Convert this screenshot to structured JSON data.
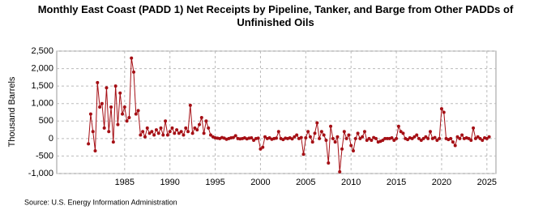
{
  "chart_data": {
    "type": "line",
    "title": "Monthly East Coast (PADD 1) Net Receipts by Pipeline, Tanker, and Barge from Other PADDs of Unfinished Oils",
    "y_label": "Thousand Barrels",
    "source": "Source: U.S. Energy Information Administration",
    "xlim": [
      1977.5,
      2026
    ],
    "xticks": [
      1985,
      1990,
      1995,
      2000,
      2005,
      2010,
      2015,
      2020,
      2025
    ],
    "ylim": [
      -1000,
      2500
    ],
    "yticks": [
      {
        "value": -1000,
        "label": "-1,000"
      },
      -500,
      0,
      500,
      {
        "value": 1000,
        "label": "1,000"
      },
      {
        "value": 1500,
        "label": "1,500"
      },
      {
        "value": 2000,
        "label": "2,000"
      },
      {
        "value": 2500,
        "label": "2,500"
      }
    ],
    "grid": true,
    "x": [
      1981,
      1981.25,
      1981.5,
      1981.75,
      1982,
      1982.25,
      1982.5,
      1982.75,
      1983,
      1983.25,
      1983.5,
      1983.75,
      1984,
      1984.25,
      1984.5,
      1984.75,
      1985,
      1985.25,
      1985.5,
      1985.75,
      1986,
      1986.25,
      1986.5,
      1986.75,
      1987,
      1987.25,
      1987.5,
      1987.75,
      1988,
      1988.25,
      1988.5,
      1988.75,
      1989,
      1989.25,
      1989.5,
      1989.75,
      1990,
      1990.25,
      1990.5,
      1990.75,
      1991,
      1991.25,
      1991.5,
      1991.75,
      1992,
      1992.25,
      1992.5,
      1992.75,
      1993,
      1993.25,
      1993.5,
      1993.75,
      1994,
      1994.25,
      1994.5,
      1994.75,
      1995,
      1995.25,
      1995.5,
      1995.75,
      1996,
      1996.25,
      1996.5,
      1996.75,
      1997,
      1997.25,
      1997.5,
      1997.75,
      1998,
      1998.25,
      1998.5,
      1998.75,
      1999,
      1999.25,
      1999.5,
      1999.75,
      2000,
      2000.25,
      2000.5,
      2000.75,
      2001,
      2001.25,
      2001.5,
      2001.75,
      2002,
      2002.25,
      2002.5,
      2002.75,
      2003,
      2003.25,
      2003.5,
      2003.75,
      2004,
      2004.25,
      2004.5,
      2004.75,
      2005,
      2005.25,
      2005.5,
      2005.75,
      2006,
      2006.25,
      2006.5,
      2006.75,
      2007,
      2007.25,
      2007.5,
      2007.75,
      2008,
      2008.25,
      2008.5,
      2008.75,
      2009,
      2009.25,
      2009.5,
      2009.75,
      2010,
      2010.25,
      2010.5,
      2010.75,
      2011,
      2011.25,
      2011.5,
      2011.75,
      2012,
      2012.25,
      2012.5,
      2012.75,
      2013,
      2013.25,
      2013.5,
      2013.75,
      2014,
      2014.25,
      2014.5,
      2014.75,
      2015,
      2015.25,
      2015.5,
      2015.75,
      2016,
      2016.25,
      2016.5,
      2016.75,
      2017,
      2017.25,
      2017.5,
      2017.75,
      2018,
      2018.25,
      2018.5,
      2018.75,
      2019,
      2019.25,
      2019.5,
      2019.75,
      2020,
      2020.25,
      2020.5,
      2020.75,
      2021,
      2021.25,
      2021.5,
      2021.75,
      2022,
      2022.25,
      2022.5,
      2022.75,
      2023,
      2023.25,
      2023.5,
      2023.75,
      2024,
      2024.25,
      2024.5,
      2024.75,
      2025,
      2025.25
    ],
    "series": [
      {
        "color": "#a50f15",
        "values": [
          -150,
          700,
          200,
          -350,
          1600,
          900,
          1000,
          300,
          1450,
          200,
          900,
          -100,
          1500,
          400,
          1300,
          700,
          900,
          500,
          600,
          2300,
          1900,
          700,
          800,
          100,
          200,
          50,
          300,
          150,
          200,
          100,
          250,
          150,
          300,
          100,
          500,
          100,
          200,
          300,
          150,
          250,
          150,
          200,
          100,
          300,
          200,
          950,
          150,
          300,
          250,
          400,
          600,
          150,
          500,
          300,
          100,
          50,
          20,
          10,
          0,
          30,
          10,
          -20,
          0,
          20,
          30,
          80,
          0,
          -10,
          0,
          20,
          -10,
          10,
          20,
          -50,
          0,
          10,
          -300,
          -250,
          50,
          0,
          20,
          -20,
          0,
          10,
          200,
          0,
          -30,
          10,
          0,
          20,
          -10,
          50,
          100,
          0,
          30,
          -450,
          20,
          200,
          50,
          -100,
          150,
          450,
          0,
          200,
          100,
          -50,
          -700,
          350,
          0,
          -100,
          50,
          -950,
          -300,
          200,
          0,
          100,
          -200,
          -350,
          0,
          150,
          0,
          50,
          200,
          -50,
          0,
          -50,
          30,
          0,
          -100,
          -80,
          -50,
          0,
          0,
          0,
          20,
          -50,
          0,
          350,
          200,
          150,
          0,
          -30,
          20,
          0,
          50,
          100,
          0,
          -50,
          0,
          50,
          0,
          200,
          0,
          30,
          -50,
          0,
          850,
          750,
          0,
          -30,
          0,
          -100,
          -200,
          50,
          0,
          100,
          0,
          20,
          0,
          -50,
          300,
          0,
          50,
          0,
          -50,
          20,
          0,
          50
        ]
      }
    ]
  }
}
